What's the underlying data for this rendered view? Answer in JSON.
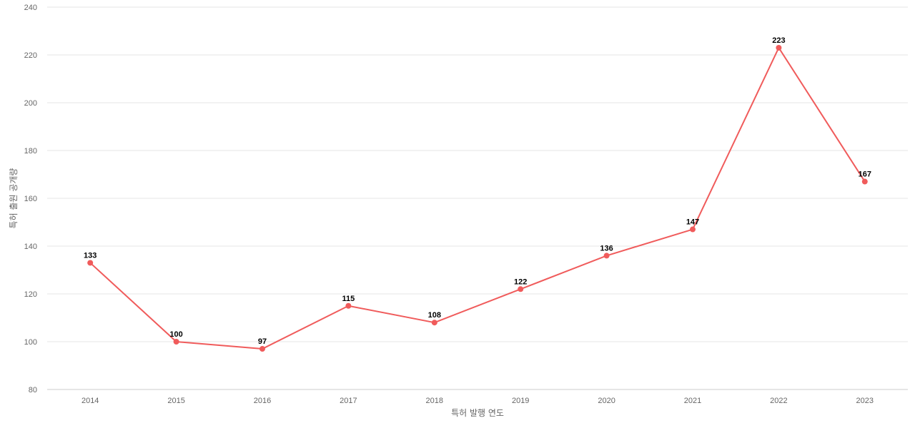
{
  "chart_data": {
    "type": "line",
    "title": "",
    "xlabel": "특허 발행 연도",
    "ylabel": "특허 출원 공개량",
    "categories": [
      "2014",
      "2015",
      "2016",
      "2017",
      "2018",
      "2019",
      "2020",
      "2021",
      "2022",
      "2023"
    ],
    "series": [
      {
        "values": [
          133,
          100,
          97,
          115,
          108,
          122,
          136,
          147,
          223,
          167
        ]
      }
    ],
    "ylim": [
      80,
      240
    ],
    "yticks": [
      80,
      100,
      120,
      140,
      160,
      180,
      200,
      220,
      240
    ],
    "grid": true,
    "legend": "none",
    "data_labels": true
  },
  "colors": {
    "line": "#f05b5b",
    "grid": "#e6e6e6"
  }
}
